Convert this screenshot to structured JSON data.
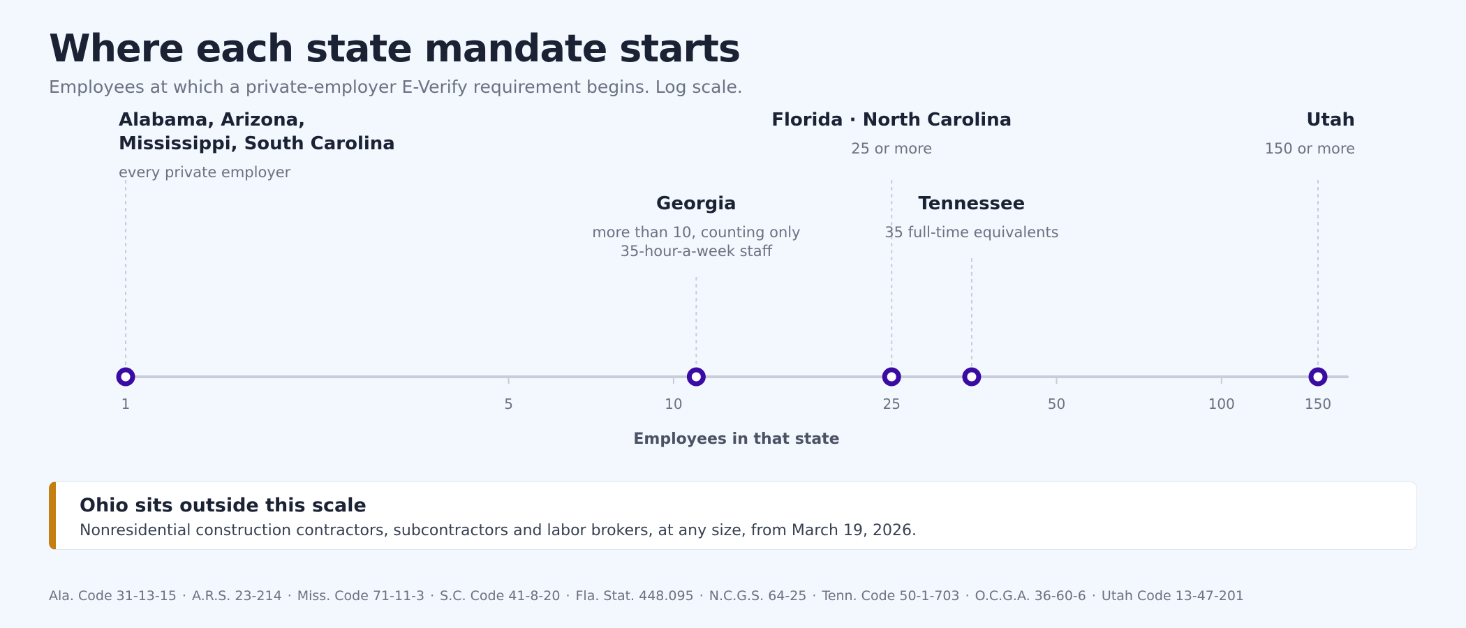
{
  "title": "Where each state mandate starts",
  "subtitle": "Employees at which a private-employer E-Verify requirement begins. Log scale.",
  "chart_data": {
    "type": "scatter",
    "scale": "log",
    "xlabel": "Employees in that state",
    "xlim": [
      1,
      160
    ],
    "ticks": [
      1,
      5,
      10,
      25,
      50,
      100,
      150
    ],
    "marker_color": "#3a0ca3",
    "points": [
      {
        "x": 1,
        "name_lines": [
          "Alabama, Arizona,",
          "Mississippi, South Carolina"
        ],
        "desc_lines": [
          "every private employer"
        ],
        "tier": "high",
        "align": "start"
      },
      {
        "x": 11,
        "name_lines": [
          "Georgia"
        ],
        "desc_lines": [
          "more than 10, counting only",
          "35-hour-a-week staff"
        ],
        "tier": "low",
        "align": "middle"
      },
      {
        "x": 25,
        "name_lines": [
          "Florida  ·  North Carolina"
        ],
        "desc_lines": [
          "25 or more"
        ],
        "tier": "high",
        "align": "middle"
      },
      {
        "x": 35,
        "name_lines": [
          "Tennessee"
        ],
        "desc_lines": [
          "35 full-time equivalents"
        ],
        "tier": "low",
        "align": "middle"
      },
      {
        "x": 150,
        "name_lines": [
          "Utah"
        ],
        "desc_lines": [
          "150 or more"
        ],
        "tier": "high",
        "align": "end"
      }
    ]
  },
  "callout": {
    "title": "Ohio sits outside this scale",
    "body": "Nonresidential construction contractors, subcontractors and labor brokers, at any size, from March 19, 2026.",
    "accent": "#c47f10"
  },
  "sources": [
    "Ala. Code 31-13-15",
    "A.R.S. 23-214",
    "Miss. Code 71-11-3",
    "S.C. Code 41-8-20",
    "Fla. Stat. 448.095",
    "N.C.G.S. 64-25",
    "Tenn. Code 50-1-703",
    "O.C.G.A. 36-60-6",
    "Utah Code 13-47-201"
  ]
}
